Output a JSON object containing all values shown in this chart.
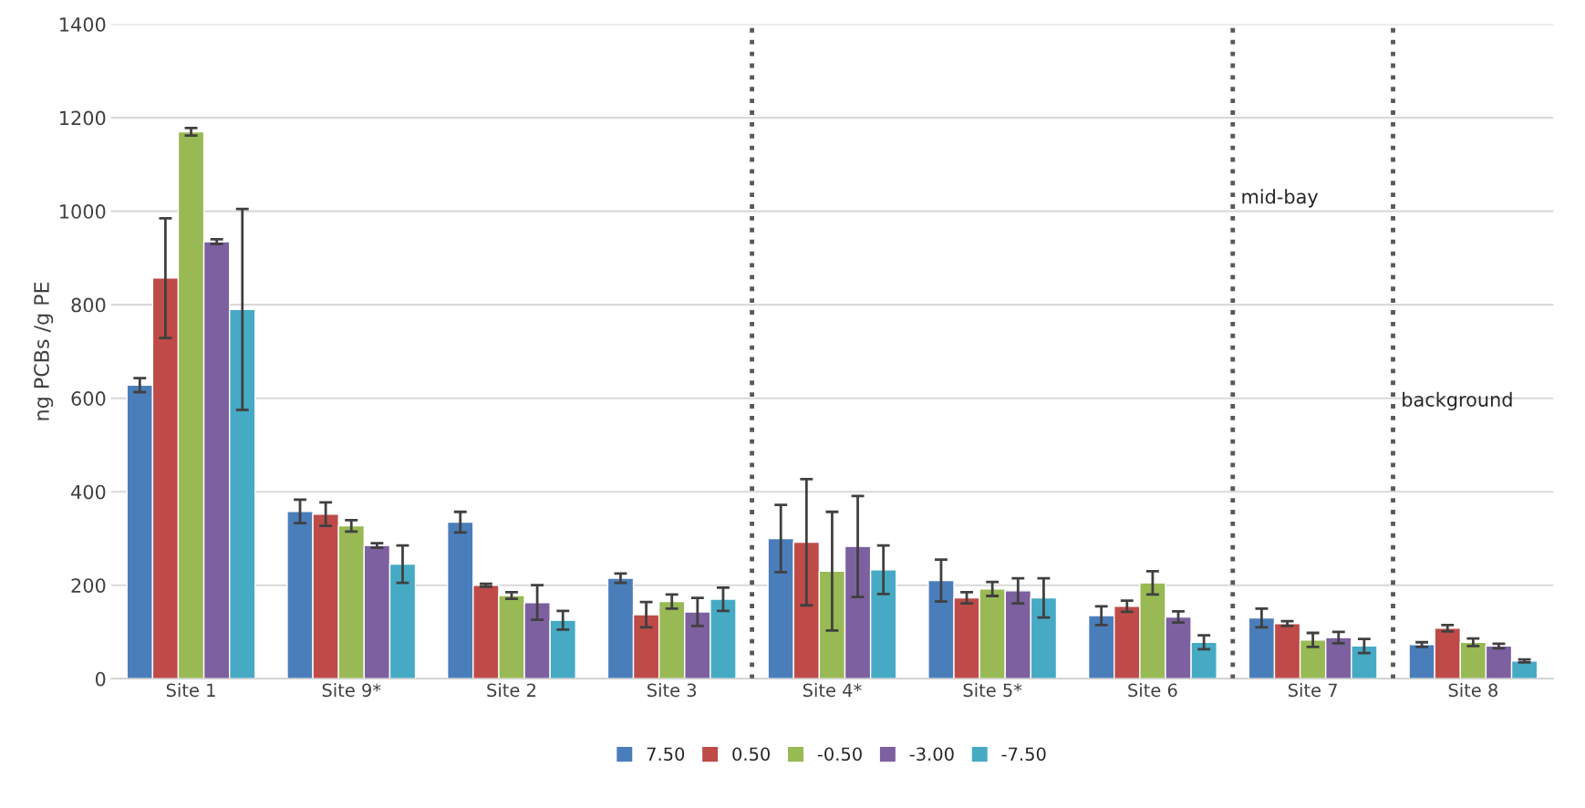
{
  "chart_data": {
    "type": "bar",
    "ylabel": "ng PCBs /g PE",
    "categories": [
      "Site 1",
      "Site 9*",
      "Site 2",
      "Site 3",
      "Site 4*",
      "Site 5*",
      "Site 6",
      "Site 7",
      "Site 8"
    ],
    "series": [
      {
        "name": "7.50",
        "color": "#4a7ebb",
        "values": [
          628,
          358,
          335,
          215,
          300,
          210,
          135,
          130,
          73
        ],
        "errors": [
          15,
          25,
          22,
          10,
          72,
          45,
          20,
          20,
          5
        ]
      },
      {
        "name": "0.50",
        "color": "#be4b48",
        "values": [
          857,
          352,
          200,
          137,
          292,
          173,
          155,
          118,
          108
        ],
        "errors": [
          128,
          25,
          3,
          27,
          135,
          12,
          12,
          5,
          7
        ]
      },
      {
        "name": "-0.50",
        "color": "#98b954",
        "values": [
          1170,
          327,
          178,
          165,
          230,
          192,
          205,
          83,
          78
        ],
        "errors": [
          8,
          12,
          7,
          15,
          127,
          15,
          25,
          15,
          8
        ]
      },
      {
        "name": "-3.00",
        "color": "#7d60a0",
        "values": [
          935,
          285,
          163,
          143,
          283,
          188,
          132,
          88,
          70
        ],
        "errors": [
          5,
          5,
          37,
          30,
          108,
          27,
          12,
          12,
          5
        ]
      },
      {
        "name": "-7.50",
        "color": "#46aac5",
        "values": [
          790,
          245,
          125,
          170,
          233,
          173,
          78,
          70,
          38
        ],
        "errors": [
          215,
          40,
          20,
          25,
          52,
          42,
          15,
          15,
          3
        ]
      }
    ],
    "ylim": [
      0,
      1400
    ],
    "yticks": [
      0,
      200,
      400,
      600,
      800,
      1000,
      1200,
      1400
    ],
    "grid": "y",
    "legend": "bottom",
    "annotations": [
      "mid-bay",
      "background"
    ]
  }
}
